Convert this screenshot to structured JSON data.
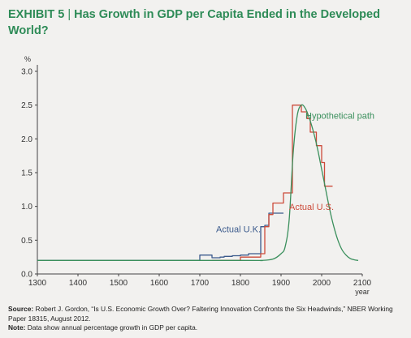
{
  "exhibit": {
    "label": "EXHIBIT 5",
    "separator": "|",
    "title": "Has Growth in GDP per Capita Ended in the Developed World?"
  },
  "source": {
    "label": "Source:",
    "text": "Robert  J. Gordon, “Is U.S. Economic Growth Over? Faltering Innovation Confronts the Six Headwinds,” NBER Working Paper 18315, August 2012.",
    "note_label": "Note:",
    "note_text": "Data show annual percentage growth in GDP per capita."
  },
  "colors": {
    "title": "#2e8b57",
    "uk": "#3b5a8c",
    "us": "#cc4b3a",
    "hypothetical": "#3a8f5c",
    "axis": "#444444",
    "background": "#f2f1ef"
  },
  "chart_data": {
    "type": "line",
    "ylabel": "%",
    "xlabel": "year",
    "xlim": [
      1300,
      2100
    ],
    "ylim": [
      0,
      3.0
    ],
    "xticks": [
      1300,
      1400,
      1500,
      1600,
      1700,
      1800,
      1900,
      2000,
      2100
    ],
    "yticks": [
      "0.0",
      "0.5",
      "1.0",
      "1.5",
      "2.0",
      "2.5",
      "3.0"
    ],
    "grid": false,
    "series": [
      {
        "name": "Actual U.K.",
        "color_key": "uk",
        "style": "step",
        "x": [
          1300,
          1700,
          1700,
          1730,
          1730,
          1750,
          1750,
          1760,
          1760,
          1780,
          1780,
          1800,
          1800,
          1820,
          1820,
          1850,
          1850,
          1860,
          1860,
          1870,
          1870,
          1880,
          1880,
          1906,
          1906
        ],
        "y": [
          0.2,
          0.2,
          0.28,
          0.28,
          0.24,
          0.24,
          0.25,
          0.25,
          0.26,
          0.26,
          0.27,
          0.27,
          0.28,
          0.28,
          0.3,
          0.3,
          0.7,
          0.7,
          0.72,
          0.72,
          0.9,
          0.9,
          0.9,
          0.9,
          0.9
        ]
      },
      {
        "name": "Actual U.S.",
        "color_key": "us",
        "style": "step",
        "x": [
          1730,
          1800,
          1800,
          1850,
          1850,
          1860,
          1860,
          1870,
          1870,
          1880,
          1880,
          1906,
          1906,
          1928,
          1928,
          1950,
          1950,
          1964,
          1964,
          1972,
          1972,
          1987,
          1987,
          2000,
          2000,
          2007,
          2007,
          2027
        ],
        "y": [
          0.2,
          0.2,
          0.25,
          0.25,
          0.3,
          0.3,
          0.7,
          0.7,
          0.88,
          0.88,
          1.05,
          1.05,
          1.2,
          1.2,
          2.5,
          2.5,
          2.4,
          2.4,
          2.3,
          2.3,
          2.1,
          2.1,
          1.9,
          1.9,
          1.65,
          1.65,
          1.3,
          1.3
        ]
      },
      {
        "name": "Hypothetical path",
        "color_key": "hypothetical",
        "style": "smooth",
        "x": [
          1300,
          1800,
          1850,
          1880,
          1900,
          1910,
          1920,
          1930,
          1940,
          1950,
          1960,
          1970,
          1980,
          1990,
          2000,
          2010,
          2020,
          2030,
          2040,
          2050,
          2060,
          2070,
          2080,
          2090
        ],
        "y": [
          0.2,
          0.2,
          0.2,
          0.22,
          0.3,
          0.4,
          0.8,
          1.8,
          2.35,
          2.5,
          2.45,
          2.3,
          2.1,
          1.85,
          1.55,
          1.25,
          0.95,
          0.7,
          0.5,
          0.36,
          0.28,
          0.23,
          0.21,
          0.2
        ]
      }
    ],
    "annotations": [
      {
        "text": "Hypothetical path",
        "x": 2045,
        "y": 2.3,
        "anchor": "middle",
        "color_key": "hypothetical"
      },
      {
        "text": "Actual U.S.",
        "x": 1975,
        "y": 0.95,
        "anchor": "middle",
        "color_key": "us"
      },
      {
        "text": "Actual U.K.",
        "x": 1795,
        "y": 0.62,
        "anchor": "middle",
        "color_key": "uk"
      }
    ]
  }
}
